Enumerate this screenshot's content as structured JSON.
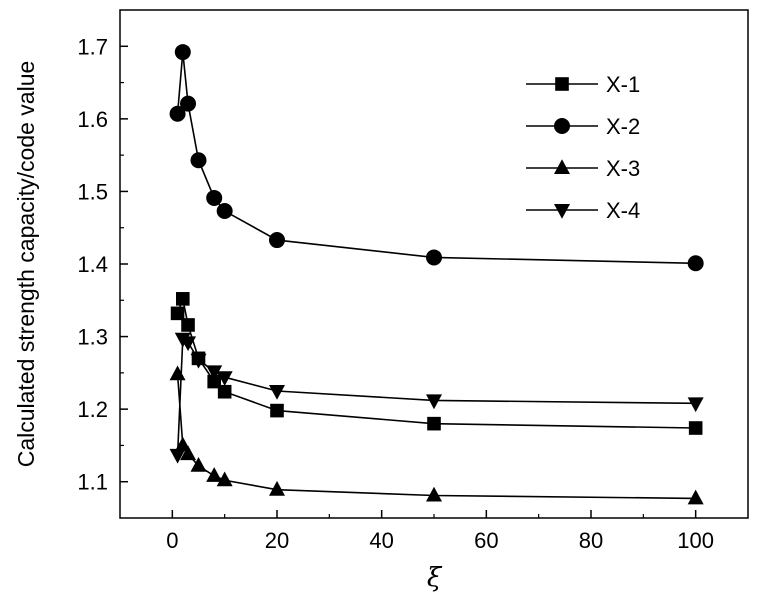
{
  "chart_data": {
    "type": "line",
    "title": "",
    "xlabel": "ξ",
    "ylabel": "Calculated strength capacity/code value",
    "xlim": [
      -10,
      110
    ],
    "ylim": [
      1.05,
      1.75
    ],
    "xticks": [
      0,
      20,
      40,
      60,
      80,
      100
    ],
    "yticks": [
      1.1,
      1.2,
      1.3,
      1.4,
      1.5,
      1.6,
      1.7
    ],
    "xtick_labels": [
      "0",
      "20",
      "40",
      "60",
      "80",
      "100"
    ],
    "ytick_labels": [
      "1.1",
      "1.2",
      "1.3",
      "1.4",
      "1.5",
      "1.6",
      "1.7"
    ],
    "grid": false,
    "legend_position": "top-right",
    "series": [
      {
        "name": "X-1",
        "marker": "square",
        "x": [
          1,
          2,
          3,
          5,
          8,
          10,
          20,
          50,
          100
        ],
        "y": [
          1.332,
          1.352,
          1.316,
          1.27,
          1.238,
          1.224,
          1.198,
          1.18,
          1.174
        ]
      },
      {
        "name": "X-2",
        "marker": "circle",
        "x": [
          1,
          2,
          3,
          5,
          8,
          10,
          20,
          50,
          100
        ],
        "y": [
          1.607,
          1.692,
          1.621,
          1.543,
          1.491,
          1.473,
          1.433,
          1.409,
          1.401
        ]
      },
      {
        "name": "X-3",
        "marker": "triangle-up",
        "x": [
          1,
          2,
          3,
          5,
          8,
          10,
          20,
          50,
          100
        ],
        "y": [
          1.248,
          1.15,
          1.138,
          1.122,
          1.108,
          1.102,
          1.089,
          1.081,
          1.077
        ]
      },
      {
        "name": "X-4",
        "marker": "triangle-down",
        "x": [
          1,
          2,
          3,
          5,
          8,
          10,
          20,
          50,
          100
        ],
        "y": [
          1.137,
          1.297,
          1.292,
          1.268,
          1.252,
          1.244,
          1.225,
          1.212,
          1.208
        ]
      }
    ]
  }
}
